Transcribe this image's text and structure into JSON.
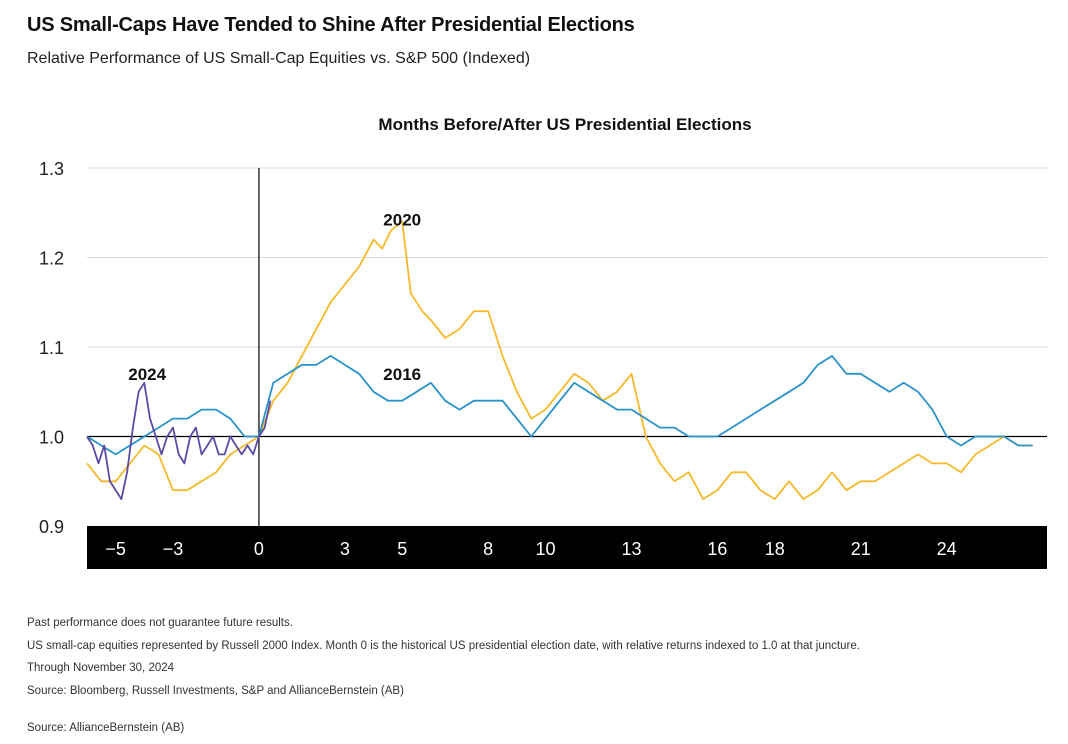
{
  "header": {
    "title": "US Small-Caps Have Tended to Shine After Presidential Elections",
    "subtitle": "Relative Performance of US Small-Cap Equities vs. S&P 500 (Indexed)"
  },
  "footnotes": {
    "line1": "Past performance does not guarantee future results.",
    "line2": "US small-cap equities represented by Russell 2000 Index. Month 0 is the historical US presidential election date, with relative returns indexed to 1.0 at that juncture.",
    "line3": "Through November 30, 2024",
    "line4": "Source: Bloomberg, Russell Investments, S&P and AllianceBernstein (AB)"
  },
  "source": "Source: AllianceBernstein (AB)",
  "colors": {
    "2020": "#f6b92b",
    "2016": "#2a92c9",
    "2024": "#5b4aa6",
    "axis_bar": "#000000",
    "grid": "#d9d9d9"
  },
  "chart_data": {
    "type": "line",
    "title": "Months Before/After US Presidential Elections",
    "xlabel": "",
    "ylabel": "",
    "xlim": [
      -6,
      27.5
    ],
    "ylim": [
      0.9,
      1.3
    ],
    "yticks": [
      "0.9",
      "1.0",
      "1.1",
      "1.2",
      "1.3"
    ],
    "xticks": [
      {
        "x": -5,
        "label": "−5"
      },
      {
        "x": -3,
        "label": "−3"
      },
      {
        "x": 0,
        "label": "0"
      },
      {
        "x": 3,
        "label": "3"
      },
      {
        "x": 5,
        "label": "5"
      },
      {
        "x": 8,
        "label": "8"
      },
      {
        "x": 10,
        "label": "10"
      },
      {
        "x": 13,
        "label": "13"
      },
      {
        "x": 16,
        "label": "16"
      },
      {
        "x": 18,
        "label": "18"
      },
      {
        "x": 21,
        "label": "21"
      },
      {
        "x": 24,
        "label": "24"
      }
    ],
    "grid": true,
    "legend": "none (series labelled directly on chart)",
    "series": [
      {
        "name": "2020",
        "label_at": {
          "x": 5.0,
          "y": 1.236
        },
        "x": [
          -6,
          -5.5,
          -5,
          -4.5,
          -4,
          -3.5,
          -3,
          -2.5,
          -2,
          -1.5,
          -1,
          -0.5,
          0,
          0.5,
          1,
          1.5,
          2,
          2.5,
          3,
          3.5,
          4,
          4.3,
          4.6,
          5,
          5.3,
          5.7,
          6,
          6.5,
          7,
          7.5,
          8,
          8.5,
          9,
          9.5,
          10,
          10.5,
          11,
          11.5,
          12,
          12.5,
          13,
          13.5,
          14,
          14.5,
          15,
          15.5,
          16,
          16.5,
          17,
          17.5,
          18,
          18.5,
          19,
          19.5,
          20,
          20.5,
          21,
          21.5,
          22,
          22.5,
          23,
          23.5,
          24,
          24.5,
          25,
          25.5,
          26,
          26.5,
          27
        ],
        "y": [
          0.97,
          0.95,
          0.95,
          0.97,
          0.99,
          0.98,
          0.94,
          0.94,
          0.95,
          0.96,
          0.98,
          0.99,
          1.0,
          1.04,
          1.06,
          1.09,
          1.12,
          1.15,
          1.17,
          1.19,
          1.22,
          1.21,
          1.23,
          1.24,
          1.16,
          1.14,
          1.13,
          1.11,
          1.12,
          1.14,
          1.14,
          1.09,
          1.05,
          1.02,
          1.03,
          1.05,
          1.07,
          1.06,
          1.04,
          1.05,
          1.07,
          1.0,
          0.97,
          0.95,
          0.96,
          0.93,
          0.94,
          0.96,
          0.96,
          0.94,
          0.93,
          0.95,
          0.93,
          0.94,
          0.96,
          0.94,
          0.95,
          0.95,
          0.96,
          0.97,
          0.98,
          0.97,
          0.97,
          0.96,
          0.98,
          0.99,
          1.0,
          0.99,
          0.99
        ]
      },
      {
        "name": "2016",
        "label_at": {
          "x": 5.0,
          "y": 1.063
        },
        "x": [
          -6,
          -5.5,
          -5,
          -4.5,
          -4,
          -3.5,
          -3,
          -2.5,
          -2,
          -1.5,
          -1,
          -0.5,
          0,
          0.5,
          1,
          1.5,
          2,
          2.5,
          3,
          3.5,
          4,
          4.5,
          5,
          5.5,
          6,
          6.5,
          7,
          7.5,
          8,
          8.5,
          9,
          9.5,
          10,
          10.5,
          11,
          11.5,
          12,
          12.5,
          13,
          13.5,
          14,
          14.5,
          15,
          15.5,
          16,
          16.5,
          17,
          17.5,
          18,
          18.5,
          19,
          19.5,
          20,
          20.5,
          21,
          21.5,
          22,
          22.5,
          23,
          23.5,
          24,
          24.5,
          25,
          25.5,
          26,
          26.5,
          27
        ],
        "y": [
          1.0,
          0.99,
          0.98,
          0.99,
          1.0,
          1.01,
          1.02,
          1.02,
          1.03,
          1.03,
          1.02,
          1.0,
          1.0,
          1.06,
          1.07,
          1.08,
          1.08,
          1.09,
          1.08,
          1.07,
          1.05,
          1.04,
          1.04,
          1.05,
          1.06,
          1.04,
          1.03,
          1.04,
          1.04,
          1.04,
          1.02,
          1.0,
          1.02,
          1.04,
          1.06,
          1.05,
          1.04,
          1.03,
          1.03,
          1.02,
          1.01,
          1.01,
          1.0,
          1.0,
          1.0,
          1.01,
          1.02,
          1.03,
          1.04,
          1.05,
          1.06,
          1.08,
          1.09,
          1.07,
          1.07,
          1.06,
          1.05,
          1.06,
          1.05,
          1.03,
          1.0,
          0.99,
          1.0,
          1.0,
          1.0,
          0.99,
          0.99
        ]
      },
      {
        "name": "2024",
        "label_at": {
          "x": -3.9,
          "y": 1.063
        },
        "x": [
          -6,
          -5.8,
          -5.6,
          -5.4,
          -5.2,
          -5.0,
          -4.8,
          -4.6,
          -4.4,
          -4.2,
          -4.0,
          -3.8,
          -3.6,
          -3.4,
          -3.2,
          -3.0,
          -2.8,
          -2.6,
          -2.4,
          -2.2,
          -2.0,
          -1.8,
          -1.6,
          -1.4,
          -1.2,
          -1.0,
          -0.8,
          -0.6,
          -0.4,
          -0.2,
          0.0,
          0.2,
          0.4
        ],
        "y": [
          1.0,
          0.99,
          0.97,
          0.99,
          0.95,
          0.94,
          0.93,
          0.96,
          1.01,
          1.05,
          1.06,
          1.02,
          1.0,
          0.98,
          1.0,
          1.01,
          0.98,
          0.97,
          1.0,
          1.01,
          0.98,
          0.99,
          1.0,
          0.98,
          0.98,
          1.0,
          0.99,
          0.98,
          0.99,
          0.98,
          1.0,
          1.01,
          1.04
        ]
      }
    ]
  }
}
